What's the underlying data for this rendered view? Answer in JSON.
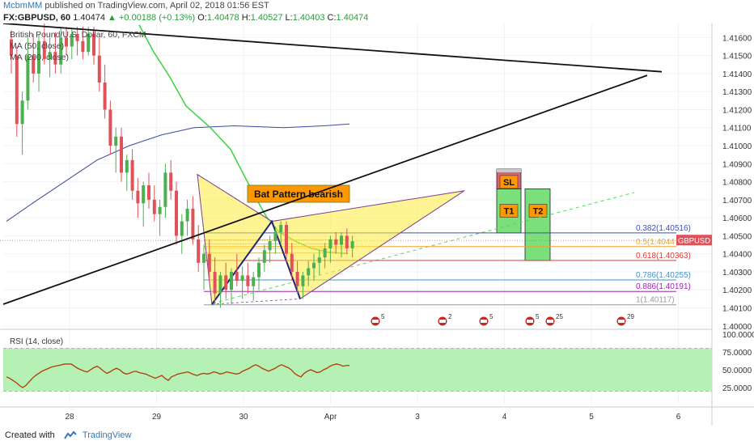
{
  "header": {
    "author": "McbmMM",
    "published": "published on TradingView.com, April 02, 2018 01:56 EST",
    "symbol": "FX:GBPUSD, 60",
    "last": "1.40474",
    "change": "▲ +0.00188 (+0.13%)",
    "o_label": "O:",
    "o": "1.40478",
    "h_label": "H:",
    "h": "1.40527",
    "l_label": "L:",
    "l": "1.40403",
    "c_label": "C:",
    "c": "1.40474"
  },
  "legend": {
    "title": "British Pound/U.S. Dollar, 60, FXCM",
    "ma50": "MA (50, close)",
    "ma200": "MA (200, close)"
  },
  "annotations": {
    "pattern": "Bat Pattern bearish",
    "sl": "SL",
    "t1": "T1",
    "t2": "T2",
    "price_tag": "GBPUSD",
    "events_label": "5",
    "event_2": "2",
    "event_25": "25",
    "event_29": "29"
  },
  "fib_levels": [
    {
      "label": "0.382(1.40516)",
      "price": 1.40516,
      "color": "#3f51b5"
    },
    {
      "label": "0.5(1.4044",
      "price": 1.4044,
      "color": "#f0a030"
    },
    {
      "label": "0.618(1.40363)",
      "price": 1.40363,
      "color": "#e53935"
    },
    {
      "label": "0.786(1.40255)",
      "price": 1.40255,
      "color": "#4a90c8"
    },
    {
      "label": "0.886(1.40191)",
      "price": 1.40191,
      "color": "#9c27b0"
    },
    {
      "label": "1(1.40117)",
      "price": 1.40117,
      "color": "#999999"
    }
  ],
  "chart_data": {
    "type": "candlestick",
    "price_axis": {
      "ticks": [
        "1.41600",
        "1.41500",
        "1.41400",
        "1.41300",
        "1.41200",
        "1.41100",
        "1.41000",
        "1.40900",
        "1.40800",
        "1.40700",
        "1.40600",
        "1.40500",
        "1.40400",
        "1.40300",
        "1.40200",
        "1.40100",
        "1.40000"
      ],
      "range": [
        1.3999,
        1.4166
      ]
    },
    "x_axis": {
      "labels": [
        "28",
        "29",
        "30",
        "Apr",
        "3",
        "4",
        "5",
        "6"
      ],
      "day_positions": [
        0,
        1,
        2,
        3,
        4,
        5,
        6,
        7
      ]
    },
    "rsi": {
      "title": "RSI (14, close)",
      "ticks": [
        "100.0000",
        "75.0000",
        "50.0000",
        "25.0000"
      ],
      "upper": 80,
      "lower": 20,
      "values": [
        40,
        38,
        35,
        32,
        28,
        25,
        28,
        33,
        38,
        42,
        45,
        48,
        50,
        52,
        54,
        55,
        56,
        57,
        58,
        58,
        58,
        55,
        52,
        50,
        48,
        47,
        50,
        53,
        55,
        52,
        48,
        45,
        47,
        50,
        52,
        50,
        46,
        44,
        45,
        47,
        48,
        46,
        45,
        44,
        42,
        40,
        38,
        40,
        42,
        38,
        35,
        40,
        42,
        44,
        45,
        46,
        47,
        45,
        43,
        42,
        44,
        45,
        44,
        45,
        47,
        46,
        44,
        45,
        47,
        46,
        45,
        44,
        45,
        48,
        50,
        52,
        55,
        57,
        55,
        52,
        50,
        48,
        50,
        52,
        55,
        57,
        55,
        53,
        50,
        45,
        42,
        40,
        45,
        48,
        50,
        48,
        46,
        47,
        50,
        52,
        55,
        57,
        58,
        57,
        55,
        56,
        56
      ]
    },
    "candles": [
      [
        1.4159,
        1.4164,
        1.414,
        1.415
      ],
      [
        1.415,
        1.4155,
        1.4105,
        1.4112
      ],
      [
        1.4112,
        1.413,
        1.4095,
        1.4125
      ],
      [
        1.4125,
        1.416,
        1.412,
        1.415
      ],
      [
        1.415,
        1.4162,
        1.4135,
        1.414
      ],
      [
        1.414,
        1.4162,
        1.413,
        1.4158
      ],
      [
        1.4158,
        1.4168,
        1.4145,
        1.4148
      ],
      [
        1.4148,
        1.416,
        1.4138,
        1.4152
      ],
      [
        1.4152,
        1.4163,
        1.414,
        1.4145
      ],
      [
        1.4145,
        1.4166,
        1.414,
        1.416
      ],
      [
        1.416,
        1.4166,
        1.415,
        1.4155
      ],
      [
        1.4155,
        1.4165,
        1.4148,
        1.4162
      ],
      [
        1.4162,
        1.4166,
        1.415,
        1.4158
      ],
      [
        1.4158,
        1.4166,
        1.4148,
        1.4152
      ],
      [
        1.4152,
        1.4166,
        1.415,
        1.4162
      ],
      [
        1.4162,
        1.4166,
        1.4145,
        1.415
      ],
      [
        1.415,
        1.416,
        1.413,
        1.4135
      ],
      [
        1.4135,
        1.4145,
        1.4115,
        1.412
      ],
      [
        1.412,
        1.4125,
        1.4095,
        1.41
      ],
      [
        1.41,
        1.411,
        1.4085,
        1.4105
      ],
      [
        1.4105,
        1.411,
        1.408,
        1.4085
      ],
      [
        1.4085,
        1.4095,
        1.4075,
        1.4092
      ],
      [
        1.4092,
        1.4098,
        1.407,
        1.4075
      ],
      [
        1.4075,
        1.4082,
        1.406,
        1.4068
      ],
      [
        1.4068,
        1.408,
        1.4055,
        1.4078
      ],
      [
        1.4078,
        1.4085,
        1.4065,
        1.407
      ],
      [
        1.407,
        1.4078,
        1.4058,
        1.4062
      ],
      [
        1.4062,
        1.407,
        1.405,
        1.4066
      ],
      [
        1.4066,
        1.409,
        1.406,
        1.4085
      ],
      [
        1.4085,
        1.4092,
        1.407,
        1.4075
      ],
      [
        1.4075,
        1.408,
        1.4045,
        1.405
      ],
      [
        1.405,
        1.4062,
        1.404,
        1.4058
      ],
      [
        1.4058,
        1.407,
        1.405,
        1.4065
      ],
      [
        1.4065,
        1.4072,
        1.4045,
        1.4048
      ],
      [
        1.4048,
        1.4056,
        1.403,
        1.4035
      ],
      [
        1.4035,
        1.4045,
        1.402,
        1.404
      ],
      [
        1.404,
        1.4048,
        1.4025,
        1.403
      ],
      [
        1.403,
        1.4038,
        1.4012,
        1.4018
      ],
      [
        1.4018,
        1.403,
        1.401,
        1.4028
      ],
      [
        1.4028,
        1.4035,
        1.4015,
        1.402
      ],
      [
        1.402,
        1.4032,
        1.4012,
        1.403
      ],
      [
        1.403,
        1.404,
        1.4022,
        1.4025
      ],
      [
        1.4025,
        1.4033,
        1.4015,
        1.4028
      ],
      [
        1.4028,
        1.4035,
        1.4018,
        1.4022
      ],
      [
        1.4022,
        1.403,
        1.4014,
        1.4027
      ],
      [
        1.4027,
        1.4038,
        1.402,
        1.4035
      ],
      [
        1.4035,
        1.4045,
        1.403,
        1.4042
      ],
      [
        1.4042,
        1.405,
        1.4035,
        1.4047
      ],
      [
        1.4047,
        1.4055,
        1.404,
        1.4052
      ],
      [
        1.4052,
        1.4058,
        1.4045,
        1.4056
      ],
      [
        1.4056,
        1.4058,
        1.4035,
        1.404
      ],
      [
        1.404,
        1.4046,
        1.4025,
        1.403
      ],
      [
        1.403,
        1.4036,
        1.4018,
        1.4022
      ],
      [
        1.4022,
        1.403,
        1.4015,
        1.4028
      ],
      [
        1.4028,
        1.4036,
        1.4022,
        1.4032
      ],
      [
        1.4032,
        1.404,
        1.4025,
        1.4035
      ],
      [
        1.4035,
        1.4042,
        1.4028,
        1.4038
      ],
      [
        1.4038,
        1.4046,
        1.4032,
        1.4043
      ],
      [
        1.4043,
        1.405,
        1.4035,
        1.4048
      ],
      [
        1.4048,
        1.4052,
        1.404,
        1.4045
      ],
      [
        1.4045,
        1.4052,
        1.4038,
        1.405
      ],
      [
        1.405,
        1.4054,
        1.404,
        1.4043
      ],
      [
        1.4043,
        1.405,
        1.4038,
        1.4047
      ]
    ]
  },
  "footer": {
    "created_with": "Created with",
    "brand": "TradingView"
  }
}
